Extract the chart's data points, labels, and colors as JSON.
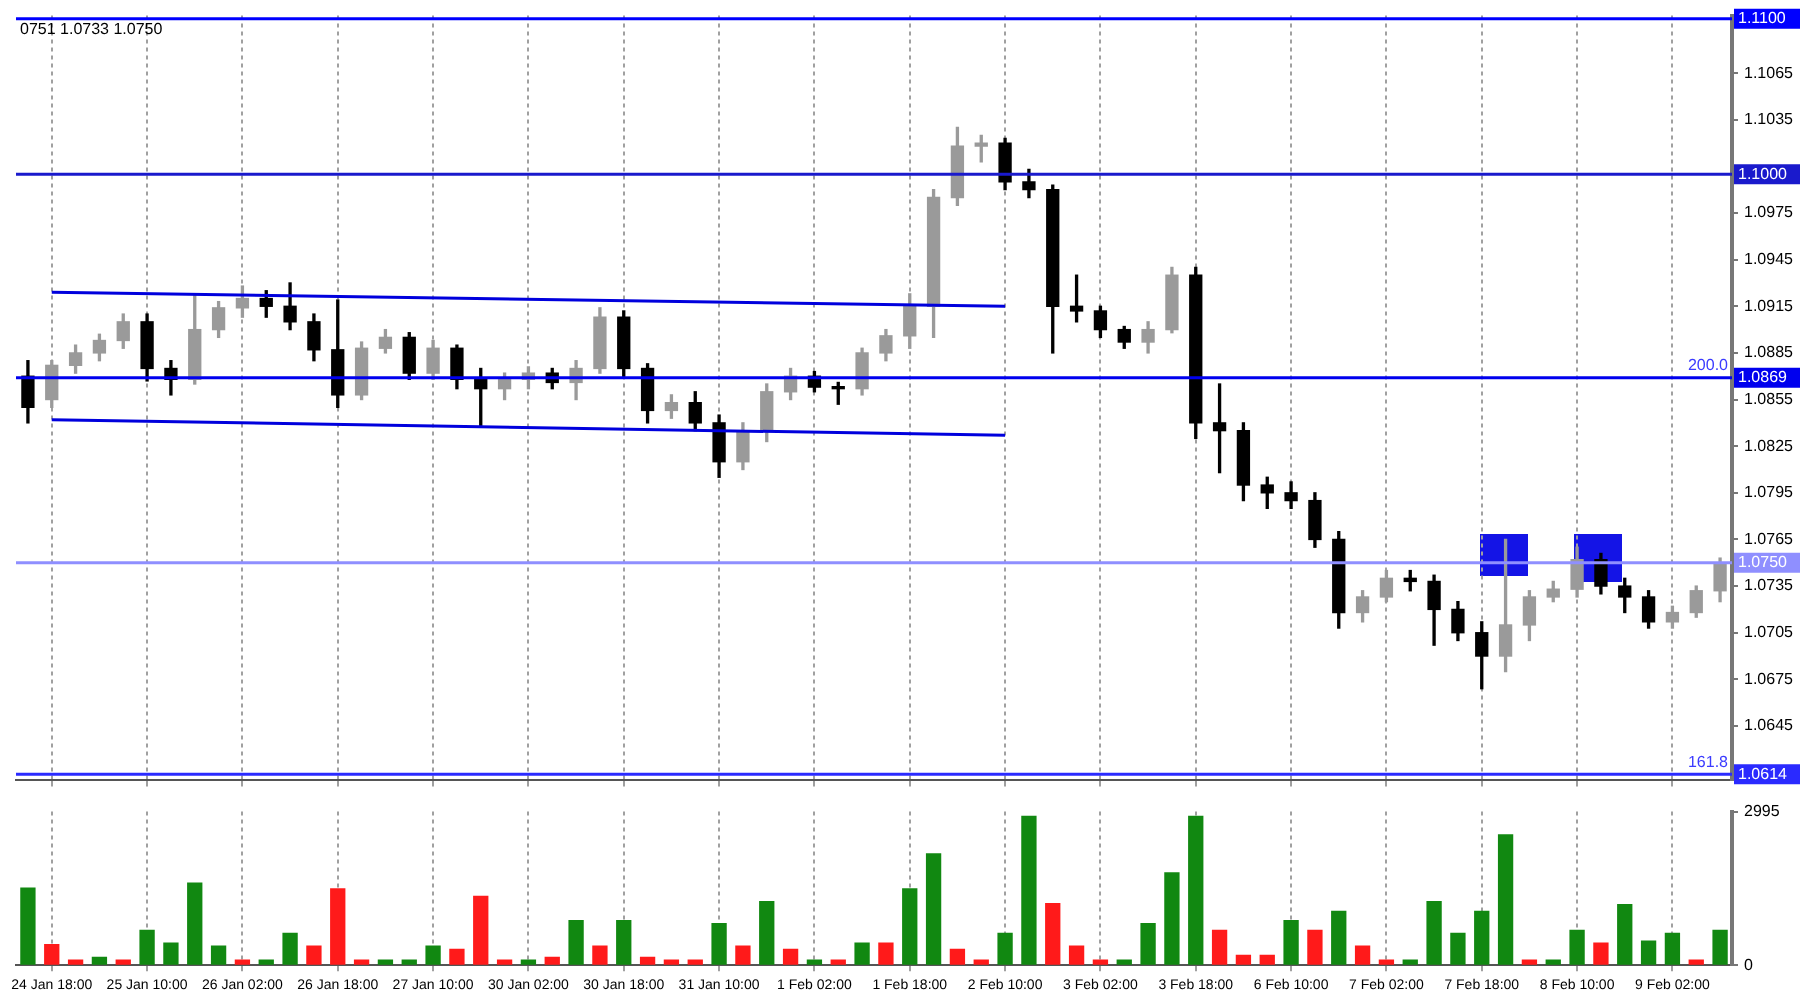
{
  "chart_data": [
    {
      "type": "candlestick",
      "annotations": [
        "0751 1.0733 1.0750",
        {
          "text": "200.0",
          "y": 1.0869
        },
        {
          "text": "161.8",
          "y": 1.0614
        }
      ],
      "categories": [
        null,
        "24 Jan 18:00",
        null,
        null,
        null,
        "25 Jan 10:00",
        null,
        null,
        null,
        "26 Jan 02:00",
        null,
        null,
        null,
        "26 Jan 18:00",
        null,
        null,
        null,
        "27 Jan 10:00",
        null,
        null,
        null,
        "30 Jan 02:00",
        null,
        null,
        null,
        "30 Jan 18:00",
        null,
        null,
        null,
        "31 Jan 10:00",
        null,
        null,
        null,
        "1 Feb 02:00",
        null,
        null,
        null,
        "1 Feb 18:00",
        null,
        null,
        null,
        "2 Feb 10:00",
        null,
        null,
        null,
        "3 Feb 02:00",
        null,
        null,
        null,
        "3 Feb 18:00",
        null,
        null,
        null,
        "6 Feb 10:00",
        null,
        null,
        null,
        "7 Feb 02:00",
        null,
        null,
        null,
        "7 Feb 18:00",
        null,
        null,
        null,
        "8 Feb 10:00",
        null,
        null,
        null,
        "9 Feb 02:00",
        null,
        null
      ],
      "ohlc": [
        [
          1.087,
          1.088,
          1.084,
          1.085
        ],
        [
          1.0855,
          1.088,
          1.085,
          1.0877
        ],
        [
          1.0877,
          1.089,
          1.0872,
          1.0885
        ],
        [
          1.0885,
          1.0897,
          1.088,
          1.0893
        ],
        [
          1.0893,
          1.091,
          1.0888,
          1.0905
        ],
        [
          1.0905,
          1.091,
          1.0867,
          1.0875
        ],
        [
          1.0875,
          1.088,
          1.0858,
          1.0868
        ],
        [
          1.0868,
          1.0922,
          1.0865,
          1.09
        ],
        [
          1.09,
          1.0918,
          1.0895,
          1.0914
        ],
        [
          1.0914,
          1.0928,
          1.0908,
          1.092
        ],
        [
          1.092,
          1.0925,
          1.0908,
          1.0915
        ],
        [
          1.0915,
          1.093,
          1.09,
          1.0905
        ],
        [
          1.0905,
          1.091,
          1.088,
          1.0887
        ],
        [
          1.0887,
          1.0919,
          1.085,
          1.0858
        ],
        [
          1.0858,
          1.0892,
          1.0855,
          1.0888
        ],
        [
          1.0888,
          1.09,
          1.0885,
          1.0895
        ],
        [
          1.0895,
          1.0898,
          1.0868,
          1.0872
        ],
        [
          1.0872,
          1.0893,
          1.0868,
          1.0888
        ],
        [
          1.0888,
          1.089,
          1.0862,
          1.0868
        ],
        [
          1.0868,
          1.0875,
          1.0838,
          1.0862
        ],
        [
          1.0862,
          1.0872,
          1.0855,
          1.0868
        ],
        [
          1.0868,
          1.0876,
          1.0862,
          1.0872
        ],
        [
          1.0872,
          1.0875,
          1.0862,
          1.0866
        ],
        [
          1.0866,
          1.088,
          1.0855,
          1.0875
        ],
        [
          1.0875,
          1.0914,
          1.0872,
          1.0908
        ],
        [
          1.0908,
          1.0912,
          1.087,
          1.0875
        ],
        [
          1.0875,
          1.0878,
          1.084,
          1.0848
        ],
        [
          1.0848,
          1.0858,
          1.0843,
          1.0853
        ],
        [
          1.0853,
          1.086,
          1.0835,
          1.084
        ],
        [
          1.084,
          1.0845,
          1.0805,
          1.0815
        ],
        [
          1.0815,
          1.084,
          1.081,
          1.0835
        ],
        [
          1.0835,
          1.0865,
          1.0828,
          1.086
        ],
        [
          1.086,
          1.0875,
          1.0855,
          1.087
        ],
        [
          1.087,
          1.0873,
          1.086,
          1.0863
        ],
        [
          1.0863,
          1.0866,
          1.0852,
          1.0862
        ],
        [
          1.0862,
          1.0888,
          1.0858,
          1.0885
        ],
        [
          1.0885,
          1.09,
          1.088,
          1.0896
        ],
        [
          1.0896,
          1.0923,
          1.0888,
          1.0915
        ],
        [
          1.0915,
          1.099,
          1.0895,
          1.0985
        ],
        [
          1.0985,
          1.103,
          1.098,
          1.1018
        ],
        [
          1.1018,
          1.1025,
          1.1008,
          1.102
        ],
        [
          1.102,
          1.1023,
          1.099,
          1.0995
        ],
        [
          1.0995,
          1.1003,
          1.0985,
          1.099
        ],
        [
          1.099,
          1.0993,
          1.0885,
          1.0915
        ],
        [
          1.0915,
          1.0935,
          1.0905,
          1.0912
        ],
        [
          1.0912,
          1.0915,
          1.0895,
          1.09
        ],
        [
          1.09,
          1.0902,
          1.0888,
          1.0892
        ],
        [
          1.0892,
          1.0905,
          1.0885,
          1.09
        ],
        [
          1.09,
          1.094,
          1.0898,
          1.0935
        ],
        [
          1.0935,
          1.094,
          1.083,
          1.084
        ],
        [
          1.084,
          1.0865,
          1.0808,
          1.0835
        ],
        [
          1.0835,
          1.084,
          1.079,
          1.08
        ],
        [
          1.08,
          1.0805,
          1.0785,
          1.0795
        ],
        [
          1.0795,
          1.0802,
          1.0785,
          1.079
        ],
        [
          1.079,
          1.0795,
          1.076,
          1.0765
        ],
        [
          1.0765,
          1.077,
          1.0708,
          1.0718
        ],
        [
          1.0718,
          1.0732,
          1.0712,
          1.0728
        ],
        [
          1.0728,
          1.0745,
          1.0725,
          1.074
        ],
        [
          1.074,
          1.0745,
          1.0732,
          1.0738
        ],
        [
          1.0738,
          1.0742,
          1.0697,
          1.072
        ],
        [
          1.072,
          1.0725,
          1.07,
          1.0705
        ],
        [
          1.0705,
          1.0712,
          1.0669,
          1.069
        ],
        [
          1.069,
          1.0765,
          1.068,
          1.071
        ],
        [
          1.071,
          1.0732,
          1.07,
          1.0728
        ],
        [
          1.0728,
          1.0738,
          1.0725,
          1.0733
        ],
        [
          1.0733,
          1.076,
          1.0728,
          1.0752
        ],
        [
          1.0752,
          1.0756,
          1.073,
          1.0735
        ],
        [
          1.0735,
          1.074,
          1.0718,
          1.0728
        ],
        [
          1.0728,
          1.0732,
          1.0708,
          1.0712
        ],
        [
          1.0712,
          1.0722,
          1.0708,
          1.0718
        ],
        [
          1.0718,
          1.0735,
          1.0715,
          1.0732
        ],
        [
          1.0732,
          1.0753,
          1.0725,
          1.075
        ]
      ],
      "colors": [
        "#000000",
        "#9a9a9a",
        "#9a9a9a",
        "#9a9a9a",
        "#9a9a9a",
        "#000000",
        "#000000",
        "#9a9a9a",
        "#9a9a9a",
        "#9a9a9a",
        "#000000",
        "#000000",
        "#000000",
        "#000000",
        "#9a9a9a",
        "#9a9a9a",
        "#000000",
        "#9a9a9a",
        "#000000",
        "#000000",
        "#9a9a9a",
        "#9a9a9a",
        "#000000",
        "#9a9a9a",
        "#9a9a9a",
        "#000000",
        "#000000",
        "#9a9a9a",
        "#000000",
        "#000000",
        "#9a9a9a",
        "#9a9a9a",
        "#9a9a9a",
        "#000000",
        "#000000",
        "#9a9a9a",
        "#9a9a9a",
        "#9a9a9a",
        "#9a9a9a",
        "#9a9a9a",
        "#9a9a9a",
        "#000000",
        "#000000",
        "#000000",
        "#000000",
        "#000000",
        "#000000",
        "#9a9a9a",
        "#9a9a9a",
        "#000000",
        "#000000",
        "#000000",
        "#000000",
        "#000000",
        "#000000",
        "#000000",
        "#9a9a9a",
        "#9a9a9a",
        "#000000",
        "#000000",
        "#000000",
        "#000000",
        "#9a9a9a",
        "#9a9a9a",
        "#9a9a9a",
        "#9a9a9a",
        "#000000",
        "#000000",
        "#000000",
        "#9a9a9a",
        "#9a9a9a",
        "#9a9a9a"
      ],
      "series": [
        {
          "type": "line",
          "color": "#0000dd",
          "x": [
            "24 Jan 18:00",
            "2 Feb 10:00"
          ],
          "values": [
            1.0924,
            1.0915
          ]
        },
        {
          "type": "line",
          "color": "#0000dd",
          "x": [
            "24 Jan 18:00",
            "2 Feb 10:00"
          ],
          "values": [
            1.0842,
            1.0832
          ]
        }
      ],
      "ref_lines": [
        {
          "axis": "y",
          "value": 1.11,
          "label": "1.1100",
          "color": "#0000ff"
        },
        {
          "axis": "y",
          "value": 1.1,
          "label": "1.1000",
          "color": "#1a1acc"
        },
        {
          "axis": "y",
          "value": 1.0869,
          "label": "1.0869",
          "color": "#0000ee"
        },
        {
          "axis": "y",
          "value": 1.075,
          "label": "1.0750",
          "color": "#8f8fff"
        },
        {
          "axis": "y",
          "value": 1.0614,
          "label": "1.0614",
          "color": "#2a2aff"
        }
      ],
      "ylim": [
        1.061,
        1.1102
      ],
      "yticks": [
        1.0645,
        1.0675,
        1.0705,
        1.0735,
        1.0765,
        1.0795,
        1.0825,
        1.0855,
        1.0885,
        1.0915,
        1.0945,
        1.0975,
        1.1035,
        1.1065
      ],
      "tick_labels": "y",
      "grid": "x"
    },
    {
      "type": "bar",
      "categories": [
        null,
        "24 Jan 18:00",
        null,
        null,
        null,
        "25 Jan 10:00",
        null,
        null,
        null,
        "26 Jan 02:00",
        null,
        null,
        null,
        "26 Jan 18:00",
        null,
        null,
        null,
        "27 Jan 10:00",
        null,
        null,
        null,
        "30 Jan 02:00",
        null,
        null,
        null,
        "30 Jan 18:00",
        null,
        null,
        null,
        "31 Jan 10:00",
        null,
        null,
        null,
        "1 Feb 02:00",
        null,
        null,
        null,
        "1 Feb 18:00",
        null,
        null,
        null,
        "2 Feb 10:00",
        null,
        null,
        null,
        "3 Feb 02:00",
        null,
        null,
        null,
        "3 Feb 18:00",
        null,
        null,
        null,
        "6 Feb 10:00",
        null,
        null,
        null,
        "7 Feb 02:00",
        null,
        null,
        null,
        "7 Feb 18:00",
        null,
        null,
        null,
        "8 Feb 10:00",
        null,
        null,
        null,
        "9 Feb 02:00",
        null,
        null
      ],
      "values": [
        1500,
        400,
        100,
        150,
        100,
        680,
        430,
        1600,
        370,
        100,
        100,
        620,
        370,
        1490,
        100,
        100,
        100,
        370,
        310,
        1340,
        100,
        100,
        150,
        870,
        370,
        870,
        150,
        100,
        100,
        810,
        370,
        1240,
        310,
        100,
        100,
        430,
        430,
        1490,
        2170,
        310,
        100,
        620,
        2900,
        1200,
        370,
        100,
        100,
        810,
        1800,
        2900,
        680,
        190,
        190,
        870,
        680,
        1050,
        370,
        100,
        100,
        1240,
        620,
        1050,
        2540,
        100,
        100,
        680,
        430,
        1180,
        470,
        620,
        100,
        680
      ],
      "colors": [
        "#118811",
        "#ff1a1a",
        "#ff1a1a",
        "#118811",
        "#ff1a1a",
        "#118811",
        "#118811",
        "#118811",
        "#118811",
        "#ff1a1a",
        "#118811",
        "#118811",
        "#ff1a1a",
        "#ff1a1a",
        "#ff1a1a",
        "#118811",
        "#118811",
        "#118811",
        "#ff1a1a",
        "#ff1a1a",
        "#ff1a1a",
        "#118811",
        "#ff1a1a",
        "#118811",
        "#ff1a1a",
        "#118811",
        "#ff1a1a",
        "#ff1a1a",
        "#ff1a1a",
        "#118811",
        "#ff1a1a",
        "#118811",
        "#ff1a1a",
        "#118811",
        "#ff1a1a",
        "#118811",
        "#ff1a1a",
        "#118811",
        "#118811",
        "#ff1a1a",
        "#ff1a1a",
        "#118811",
        "#118811",
        "#ff1a1a",
        "#ff1a1a",
        "#ff1a1a",
        "#118811",
        "#118811",
        "#118811",
        "#118811",
        "#ff1a1a",
        "#ff1a1a",
        "#ff1a1a",
        "#118811",
        "#ff1a1a",
        "#118811",
        "#ff1a1a",
        "#ff1a1a",
        "#118811",
        "#118811",
        "#118811",
        "#118811",
        "#118811",
        "#ff1a1a",
        "#118811",
        "#118811",
        "#ff1a1a",
        "#118811",
        "#118811",
        "#118811",
        "#ff1a1a",
        "#118811"
      ],
      "ylim": [
        0,
        2995
      ],
      "yticks": [
        0,
        2995
      ],
      "grid": "x"
    }
  ]
}
